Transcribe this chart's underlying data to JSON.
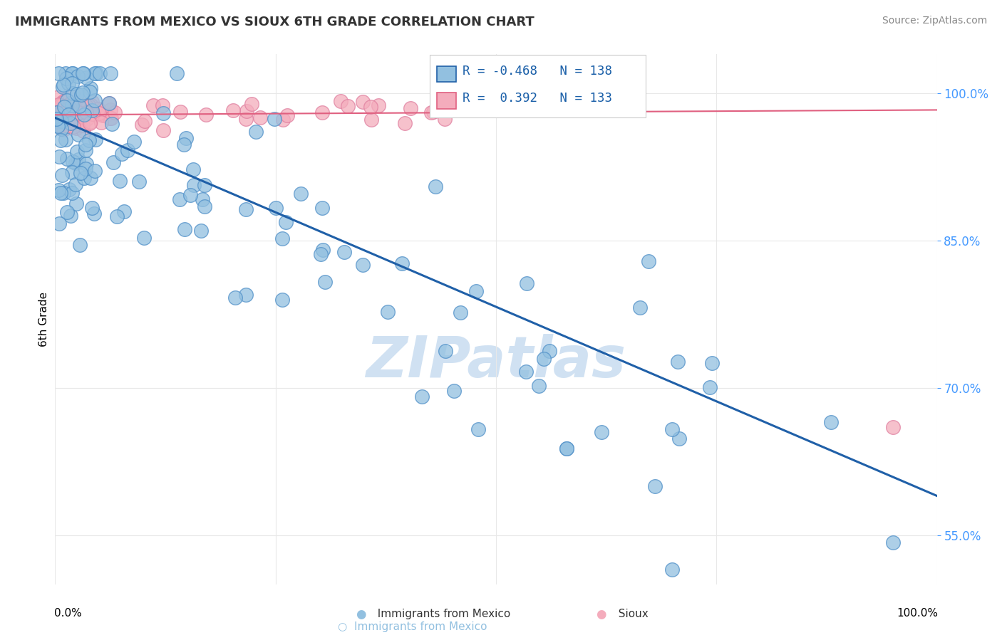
{
  "title": "IMMIGRANTS FROM MEXICO VS SIOUX 6TH GRADE CORRELATION CHART",
  "source": "Source: ZipAtlas.com",
  "ylabel": "6th Grade",
  "blue_label": "Immigrants from Mexico",
  "pink_label": "Sioux",
  "blue_R": -0.468,
  "blue_N": 138,
  "pink_R": 0.392,
  "pink_N": 133,
  "blue_color": "#92C0E0",
  "pink_color": "#F4ACBC",
  "blue_line_color": "#2060A8",
  "pink_line_color": "#E06080",
  "blue_edge_color": "#5090C8",
  "pink_edge_color": "#E080A0",
  "watermark_color": "#C8DCF0",
  "grid_color": "#E8E8E8",
  "ytick_color": "#4499FF",
  "title_color": "#333333",
  "source_color": "#888888",
  "blue_intercept": 0.975,
  "blue_slope": -0.385,
  "pink_intercept": 0.978,
  "pink_slope": 0.005,
  "xlim": [
    0.0,
    1.0
  ],
  "ylim": [
    0.5,
    1.04
  ],
  "yticks": [
    0.55,
    0.7,
    0.85,
    1.0
  ],
  "ytick_labels": [
    "55.0%",
    "70.0%",
    "85.0%",
    "100.0%"
  ]
}
